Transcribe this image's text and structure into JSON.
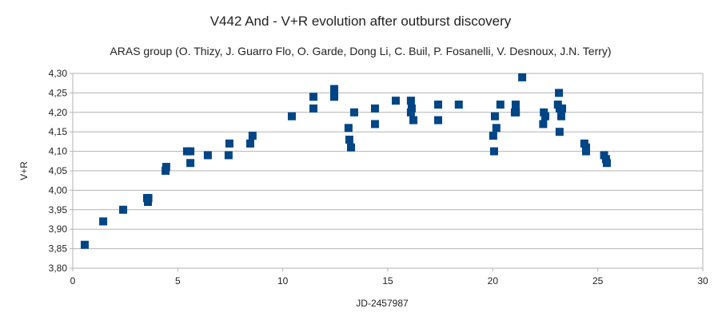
{
  "chart_data": {
    "type": "scatter",
    "title": "V442 And - V+R evolution after outburst discovery",
    "subtitle": "ARAS group (O. Thizy, J. Guarro Flo, O. Garde, Dong Li, C. Buil, P. Fosanelli, V. Desnoux, J.N. Terry)",
    "xlabel": "JD-2457987",
    "ylabel": "V+R",
    "xlim": [
      0,
      30
    ],
    "ylim": [
      3.8,
      4.3
    ],
    "xticks": [
      "0",
      "5",
      "10",
      "15",
      "20",
      "25",
      "30"
    ],
    "yticks": [
      "3,80",
      "3,85",
      "3,90",
      "3,95",
      "4,00",
      "4,05",
      "4,10",
      "4,15",
      "4,20",
      "4,25",
      "4,30"
    ],
    "grid": "horizontal",
    "legend": "none",
    "marker_color": "#004586",
    "marker": "square",
    "points": [
      [
        0.57,
        3.86
      ],
      [
        1.45,
        3.92
      ],
      [
        2.4,
        3.95
      ],
      [
        3.54,
        3.98
      ],
      [
        3.58,
        3.97
      ],
      [
        3.6,
        3.98
      ],
      [
        4.42,
        4.05
      ],
      [
        4.45,
        4.06
      ],
      [
        5.44,
        4.1
      ],
      [
        5.6,
        4.1
      ],
      [
        5.6,
        4.07
      ],
      [
        6.43,
        4.09
      ],
      [
        7.42,
        4.09
      ],
      [
        7.46,
        4.12
      ],
      [
        8.45,
        4.12
      ],
      [
        8.56,
        4.14
      ],
      [
        10.43,
        4.19
      ],
      [
        11.46,
        4.24
      ],
      [
        11.46,
        4.21
      ],
      [
        12.45,
        4.26
      ],
      [
        12.45,
        4.25
      ],
      [
        12.45,
        4.24
      ],
      [
        13.13,
        4.16
      ],
      [
        13.17,
        4.13
      ],
      [
        13.25,
        4.11
      ],
      [
        13.4,
        4.2
      ],
      [
        14.39,
        4.21
      ],
      [
        14.39,
        4.17
      ],
      [
        15.38,
        4.23
      ],
      [
        16.1,
        4.23
      ],
      [
        16.1,
        4.2
      ],
      [
        16.14,
        4.21
      ],
      [
        16.22,
        4.18
      ],
      [
        17.4,
        4.22
      ],
      [
        17.4,
        4.18
      ],
      [
        18.38,
        4.22
      ],
      [
        20.02,
        4.14
      ],
      [
        20.06,
        4.1
      ],
      [
        20.1,
        4.19
      ],
      [
        20.17,
        4.16
      ],
      [
        20.36,
        4.22
      ],
      [
        21.05,
        4.2
      ],
      [
        21.09,
        4.22
      ],
      [
        21.1,
        4.2
      ],
      [
        21.4,
        4.29
      ],
      [
        22.4,
        4.17
      ],
      [
        22.43,
        4.2
      ],
      [
        22.5,
        4.19
      ],
      [
        23.1,
        4.22
      ],
      [
        23.15,
        4.25
      ],
      [
        23.18,
        4.21
      ],
      [
        23.26,
        4.19
      ],
      [
        23.3,
        4.21
      ],
      [
        23.18,
        4.15
      ],
      [
        24.36,
        4.12
      ],
      [
        24.44,
        4.11
      ],
      [
        24.44,
        4.1
      ],
      [
        25.3,
        4.09
      ],
      [
        25.39,
        4.08
      ],
      [
        25.43,
        4.07
      ]
    ]
  }
}
